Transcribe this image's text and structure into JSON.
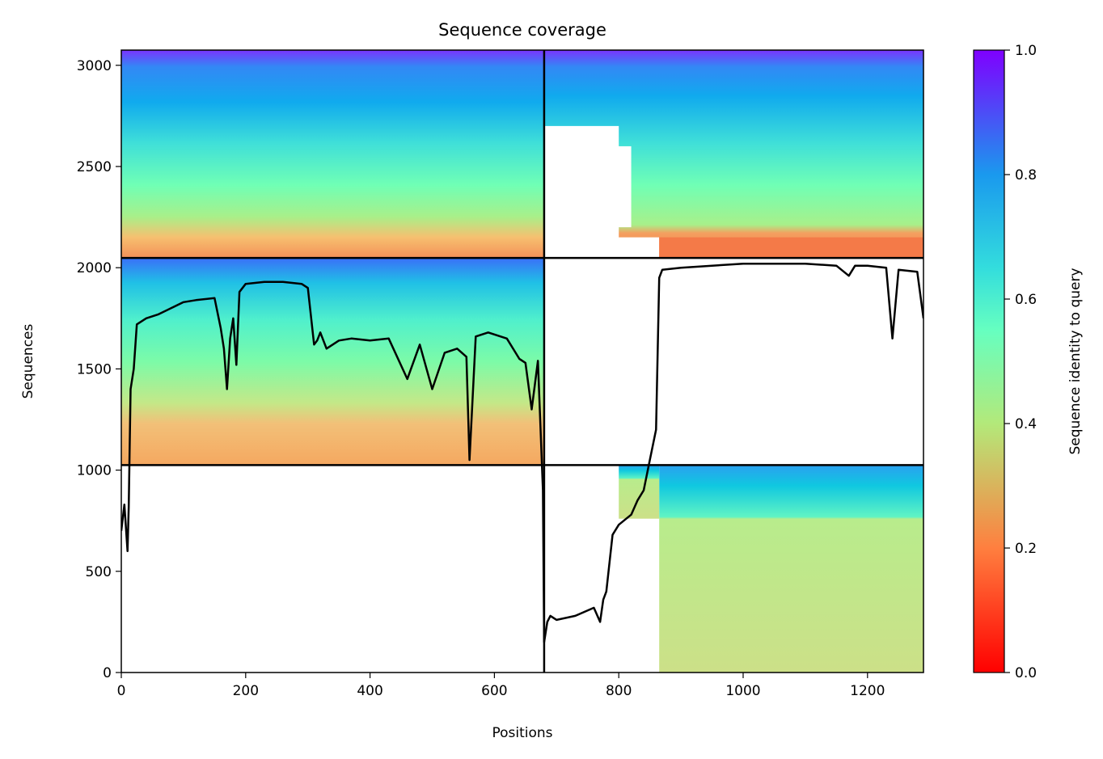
{
  "chart_data": {
    "type": "heatmap",
    "title": "Sequence coverage",
    "xlabel": "Positions",
    "ylabel": "Sequences",
    "xlim": [
      0,
      1290
    ],
    "ylim": [
      0,
      3075
    ],
    "xticks": [
      0,
      200,
      400,
      600,
      800,
      1000,
      1200
    ],
    "yticks": [
      0,
      500,
      1000,
      1500,
      2000,
      2500,
      3000
    ],
    "colorbar": {
      "label": "Sequence identity to query",
      "range": [
        0.0,
        1.0
      ],
      "ticks": [
        "0.0",
        "0.2",
        "0.4",
        "0.6",
        "0.8",
        "1.0"
      ],
      "colormap": "rainbow_r"
    },
    "segment_boundaries": {
      "x": [
        680
      ],
      "y": [
        1025,
        2048
      ]
    },
    "blocks": [
      {
        "name": "chain A paired (top-left)",
        "x": [
          0,
          680
        ],
        "y": [
          2048,
          3075
        ],
        "identity_top": 0.95,
        "identity_bottom": 0.25
      },
      {
        "name": "chain B paired (top-right)",
        "x": [
          680,
          1290
        ],
        "y": [
          2048,
          3075
        ],
        "identity_top": 0.95,
        "identity_bottom": 0.22
      },
      {
        "name": "chain A unpaired (mid-left)",
        "x": [
          0,
          680
        ],
        "y": [
          1025,
          2048
        ],
        "identity_top": 0.85,
        "identity_bottom": 0.22
      },
      {
        "name": "chain B unpaired (bottom-right)",
        "x": [
          680,
          1290
        ],
        "y": [
          0,
          1025
        ],
        "identity_top": 0.8,
        "identity_bottom": 0.42
      }
    ],
    "coverage_line": {
      "color": "#000000",
      "x": [
        0,
        5,
        10,
        12,
        15,
        20,
        25,
        40,
        60,
        80,
        100,
        120,
        150,
        160,
        165,
        170,
        175,
        180,
        185,
        190,
        200,
        230,
        260,
        290,
        300,
        310,
        315,
        320,
        330,
        350,
        370,
        400,
        430,
        460,
        480,
        500,
        520,
        540,
        555,
        560,
        570,
        590,
        620,
        640,
        650,
        660,
        670,
        678,
        680,
        685,
        690,
        700,
        730,
        760,
        770,
        775,
        780,
        790,
        800,
        820,
        830,
        840,
        850,
        860,
        865,
        870,
        900,
        1000,
        1100,
        1150,
        1170,
        1180,
        1200,
        1230,
        1240,
        1250,
        1280,
        1290
      ],
      "y": [
        700,
        830,
        600,
        820,
        1400,
        1500,
        1720,
        1750,
        1770,
        1800,
        1830,
        1840,
        1850,
        1700,
        1600,
        1400,
        1650,
        1750,
        1520,
        1880,
        1920,
        1930,
        1930,
        1920,
        1900,
        1620,
        1640,
        1680,
        1600,
        1640,
        1650,
        1640,
        1650,
        1450,
        1620,
        1400,
        1580,
        1600,
        1560,
        1050,
        1660,
        1680,
        1650,
        1550,
        1530,
        1300,
        1540,
        900,
        150,
        250,
        280,
        260,
        280,
        320,
        250,
        360,
        400,
        680,
        730,
        780,
        850,
        900,
        1050,
        1200,
        1950,
        1990,
        2000,
        2020,
        2020,
        2010,
        1960,
        2010,
        2010,
        2000,
        1650,
        1990,
        1980,
        1750
      ]
    }
  }
}
